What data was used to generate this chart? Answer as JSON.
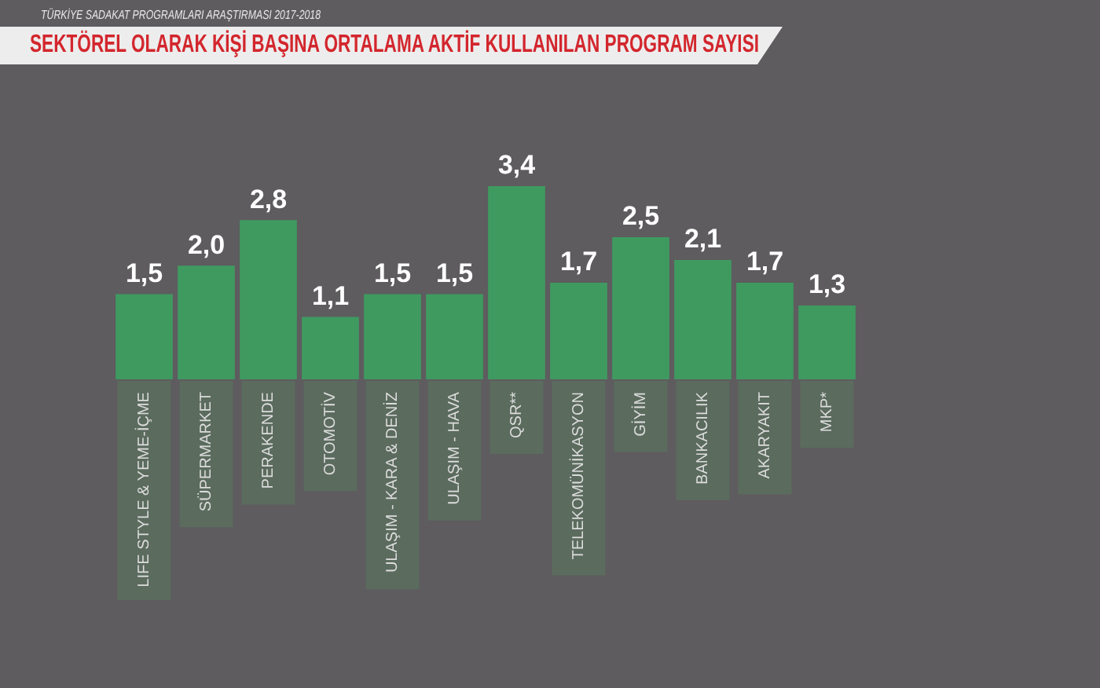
{
  "chart_data": {
    "type": "bar",
    "title": "SEKTÖREL OLARAK KİŞİ BAŞINA ORTALAMA AKTİF KULLANILAN PROGRAM SAYISI",
    "subtitle": "TÜRKİYE SADAKAT PROGRAMLARI ARAŞTIRMASI 2017-2018",
    "categories": [
      "LIFE STYLE & YEME-İÇME",
      "SÜPERMARKET",
      "PERAKENDE",
      "OTOMOTİV",
      "ULAŞIM - KARA & DENİZ",
      "ULAŞIM - HAVA",
      "QSR**",
      "TELEKOMÜNİKASYON",
      "GİYİM",
      "BANKACILIK",
      "AKARYAKIT",
      "MKP*"
    ],
    "values": [
      1.5,
      2.0,
      2.8,
      1.1,
      1.5,
      1.5,
      3.4,
      1.7,
      2.5,
      2.1,
      1.7,
      1.3
    ],
    "value_labels": [
      "1,5",
      "2,0",
      "2,8",
      "1,1",
      "1,5",
      "1,5",
      "3,4",
      "1,7",
      "2,5",
      "2,1",
      "1,7",
      "1,3"
    ],
    "color": "#3f9a60"
  }
}
